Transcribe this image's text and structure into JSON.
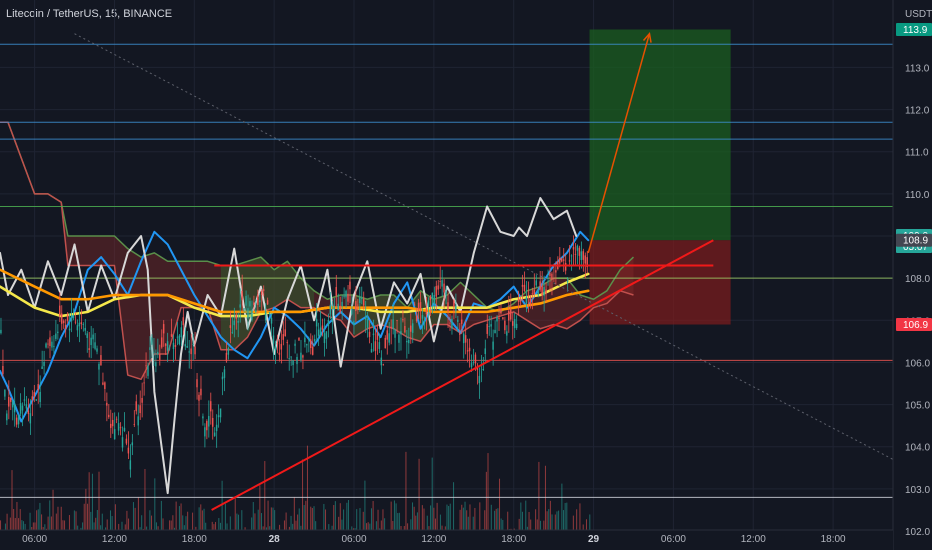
{
  "header": {
    "symbol_line": "Litecoin / TetherUS, 15, BINANCE",
    "currency": "USDT"
  },
  "colors": {
    "background": "#131722",
    "grid": "#1f2433",
    "blue_line": "#2196f3",
    "white_line": "#d8d8d8",
    "yellow_line": "#f5e84b",
    "orange_line": "#ff9800",
    "cloud_green": "#4caf50",
    "cloud_red": "#ef5350",
    "trendline": "#f01919",
    "target_zone": "#1b5e20",
    "stop_zone": "#7f1d1d"
  },
  "chart_data": {
    "type": "line",
    "y_axis": {
      "ylim": [
        101.55,
        114.6
      ],
      "ticks": [
        "102.0",
        "103.0",
        "104.0",
        "105.0",
        "106.0",
        "107.0",
        "108.0",
        "109.0",
        "110.0",
        "111.0",
        "112.0",
        "113.0"
      ]
    },
    "x_axis": {
      "ticks": [
        {
          "label": "06:00",
          "t": 0
        },
        {
          "label": "12:00",
          "t": 6
        },
        {
          "label": "18:00",
          "t": 12
        },
        {
          "label": "28",
          "t": 18,
          "bold": true
        },
        {
          "label": "06:00",
          "t": 24
        },
        {
          "label": "12:00",
          "t": 30
        },
        {
          "label": "18:00",
          "t": 36
        },
        {
          "label": "29",
          "t": 42,
          "bold": true
        },
        {
          "label": "06:00",
          "t": 48
        },
        {
          "label": "12:00",
          "t": 54
        },
        {
          "label": "18:00",
          "t": 60
        }
      ],
      "xlim": [
        -2.6,
        64.5
      ]
    },
    "price_tags": [
      {
        "value": "113.9",
        "y": 113.9,
        "color": "#089981"
      },
      {
        "value": "109.0",
        "y": 109.0,
        "color": "#26a69a",
        "sub": "05:07"
      },
      {
        "value": "108.9",
        "y": 108.9,
        "color": "#434651"
      },
      {
        "value": "106.9",
        "y": 106.9,
        "color": "#f23645"
      }
    ],
    "horizontal_levels": [
      {
        "y": 113.55,
        "color": "#3d8fd1"
      },
      {
        "y": 111.7,
        "color": "#3d8fd1"
      },
      {
        "y": 111.3,
        "color": "#3d8fd1"
      },
      {
        "y": 109.7,
        "color": "#4caf50"
      },
      {
        "y": 108.0,
        "color": "#9ccc65"
      },
      {
        "y": 106.05,
        "color": "#ef5350"
      },
      {
        "y": 102.8,
        "color": "#d1d4dc"
      }
    ],
    "resistance_line": {
      "from": [
        13.5,
        108.3
      ],
      "to": [
        51,
        108.3
      ]
    },
    "trendline": {
      "from": [
        13.3,
        102.5
      ],
      "to": [
        51,
        108.9
      ]
    },
    "dotted_trend": {
      "from": [
        3,
        113.8
      ],
      "to": [
        64.5,
        103.7
      ]
    },
    "position": {
      "entry": 108.9,
      "target": 113.9,
      "stop": 106.9,
      "x_from": 41.7,
      "x_to": 52.3
    },
    "projection": {
      "from": [
        41.6,
        108.6
      ],
      "to": [
        46.2,
        113.8
      ]
    },
    "series": [
      {
        "name": "",
        "color": "#2196f3",
        "x": [
          -2.6,
          -2,
          -1,
          0,
          1,
          2,
          3,
          4,
          5,
          6,
          7,
          8,
          9,
          10,
          11,
          12,
          13,
          14,
          15,
          16,
          17,
          18,
          19,
          20,
          21,
          22,
          23,
          24,
          25,
          26,
          27,
          28,
          29,
          30,
          31,
          32,
          33,
          34,
          35,
          36,
          37,
          38,
          39,
          40,
          41,
          41.6
        ],
        "y": [
          105.8,
          105.4,
          104.6,
          105.2,
          105.8,
          106.6,
          107.2,
          108.2,
          108.5,
          108.1,
          107.6,
          108.4,
          109.1,
          108.8,
          108.2,
          107.6,
          107.1,
          106.6,
          106.3,
          106.1,
          106.6,
          107.3,
          107.1,
          106.8,
          106.4,
          106.9,
          107.2,
          106.9,
          107.1,
          106.6,
          107.4,
          107.9,
          106.8,
          107.4,
          107.1,
          106.7,
          107.4,
          107.3,
          107.5,
          107.8,
          107.3,
          107.8,
          108.3,
          108.6,
          109.1,
          108.9
        ]
      },
      {
        "name": "",
        "color": "#d8d8d8",
        "x": [
          -2.6,
          -2,
          -1,
          0,
          1,
          2,
          3,
          4,
          5,
          6,
          7,
          8,
          8.5,
          9,
          10,
          10.5,
          11,
          11.5,
          12,
          13,
          14,
          15,
          16,
          17,
          18,
          19,
          20,
          21,
          22,
          23,
          24,
          25,
          26,
          27,
          28,
          29,
          30,
          31,
          32,
          33,
          34,
          35,
          36,
          36.4,
          37,
          38,
          39,
          40,
          40.7
        ],
        "y": [
          108.6,
          107.6,
          108.2,
          107.3,
          108.4,
          107.6,
          108.8,
          107.2,
          108.3,
          107.5,
          108.6,
          109.0,
          108.2,
          105.3,
          102.9,
          104.6,
          106.2,
          107.2,
          106.4,
          107.6,
          107.1,
          108.7,
          106.8,
          107.8,
          106.2,
          107.5,
          108.3,
          107.0,
          108.2,
          105.9,
          107.6,
          108.4,
          106.8,
          107.9,
          107.4,
          108.1,
          106.5,
          107.8,
          107.2,
          108.6,
          109.7,
          109.1,
          109.0,
          109.2,
          109.0,
          109.9,
          109.4,
          109.6,
          109.0
        ]
      },
      {
        "name": "",
        "color": "#f5e84b",
        "x": [
          -2.6,
          0,
          2,
          4,
          6,
          8,
          10,
          12,
          14,
          16,
          18,
          20,
          22,
          24,
          26,
          28,
          30,
          32,
          34,
          36,
          38,
          40,
          41.6
        ],
        "y": [
          107.8,
          107.3,
          107.1,
          107.2,
          107.5,
          107.6,
          107.6,
          107.3,
          107.1,
          107.1,
          107.2,
          107.2,
          107.3,
          107.3,
          107.2,
          107.2,
          107.3,
          107.3,
          107.3,
          107.5,
          107.6,
          107.9,
          108.1
        ]
      },
      {
        "name": "",
        "color": "#ff9800",
        "x": [
          -2.6,
          0,
          2,
          4,
          6,
          8,
          10,
          12,
          14,
          16,
          18,
          20,
          22,
          24,
          26,
          28,
          30,
          32,
          34,
          36,
          38,
          40,
          41.6
        ],
        "y": [
          108.2,
          107.8,
          107.5,
          107.5,
          107.6,
          107.6,
          107.6,
          107.4,
          107.2,
          107.2,
          107.2,
          107.2,
          107.3,
          107.3,
          107.3,
          107.3,
          107.2,
          107.2,
          107.2,
          107.3,
          107.4,
          107.6,
          107.7
        ]
      }
    ],
    "cloud": {
      "upper_x": [
        -2.6,
        -2,
        0,
        1,
        2,
        2.5,
        4,
        6,
        7,
        8,
        9,
        10,
        11,
        12,
        13,
        14,
        15,
        16,
        17,
        18,
        19,
        20,
        21,
        22,
        23,
        24,
        25,
        26,
        27,
        28,
        29,
        30,
        31,
        32,
        33,
        34,
        35,
        36,
        37,
        38,
        39,
        40,
        41,
        42,
        43,
        44,
        45
      ],
      "upper_y": [
        111.7,
        111.7,
        110.0,
        110.0,
        109.8,
        109.0,
        109.0,
        109.0,
        108.7,
        108.5,
        108.6,
        108.4,
        108.4,
        108.4,
        108.4,
        108.3,
        108.3,
        108.4,
        108.5,
        108.2,
        108.4,
        108.0,
        107.7,
        107.5,
        107.6,
        107.6,
        107.5,
        107.6,
        107.6,
        107.3,
        107.7,
        107.5,
        107.6,
        107.9,
        107.6,
        107.3,
        107.2,
        107.4,
        107.7,
        107.8,
        108.0,
        108.0,
        107.6,
        107.5,
        107.7,
        108.2,
        108.5
      ],
      "lower_x": [
        -2.6,
        -2,
        0,
        1,
        2,
        2.5,
        4,
        6,
        7,
        8,
        9,
        10,
        11,
        12,
        13,
        14,
        15,
        16,
        17,
        18,
        19,
        20,
        21,
        22,
        23,
        24,
        25,
        26,
        27,
        28,
        29,
        30,
        31,
        32,
        33,
        34,
        35,
        36,
        37,
        38,
        39,
        40,
        41,
        42,
        43,
        44,
        45
      ],
      "lower_y": [
        111.7,
        111.7,
        110.0,
        110.0,
        109.8,
        108.3,
        108.3,
        108.3,
        105.7,
        105.6,
        106.2,
        106.2,
        107.3,
        107.3,
        107.3,
        106.3,
        106.3,
        106.6,
        107.2,
        107.3,
        107.5,
        107.3,
        107.3,
        107.1,
        107.0,
        106.6,
        106.8,
        106.9,
        106.8,
        106.6,
        106.5,
        106.9,
        106.9,
        106.7,
        106.9,
        107.0,
        107.1,
        107.2,
        107.0,
        106.8,
        106.9,
        106.8,
        107.0,
        107.3,
        107.4,
        107.7,
        107.6
      ],
      "green_segments": [
        [
          13.5,
          21
        ],
        [
          24,
          31
        ]
      ]
    },
    "volume": {
      "base_y": 548,
      "max_h": 150,
      "count": 360,
      "x_from": -2.6,
      "x_to": 41.8
    }
  }
}
